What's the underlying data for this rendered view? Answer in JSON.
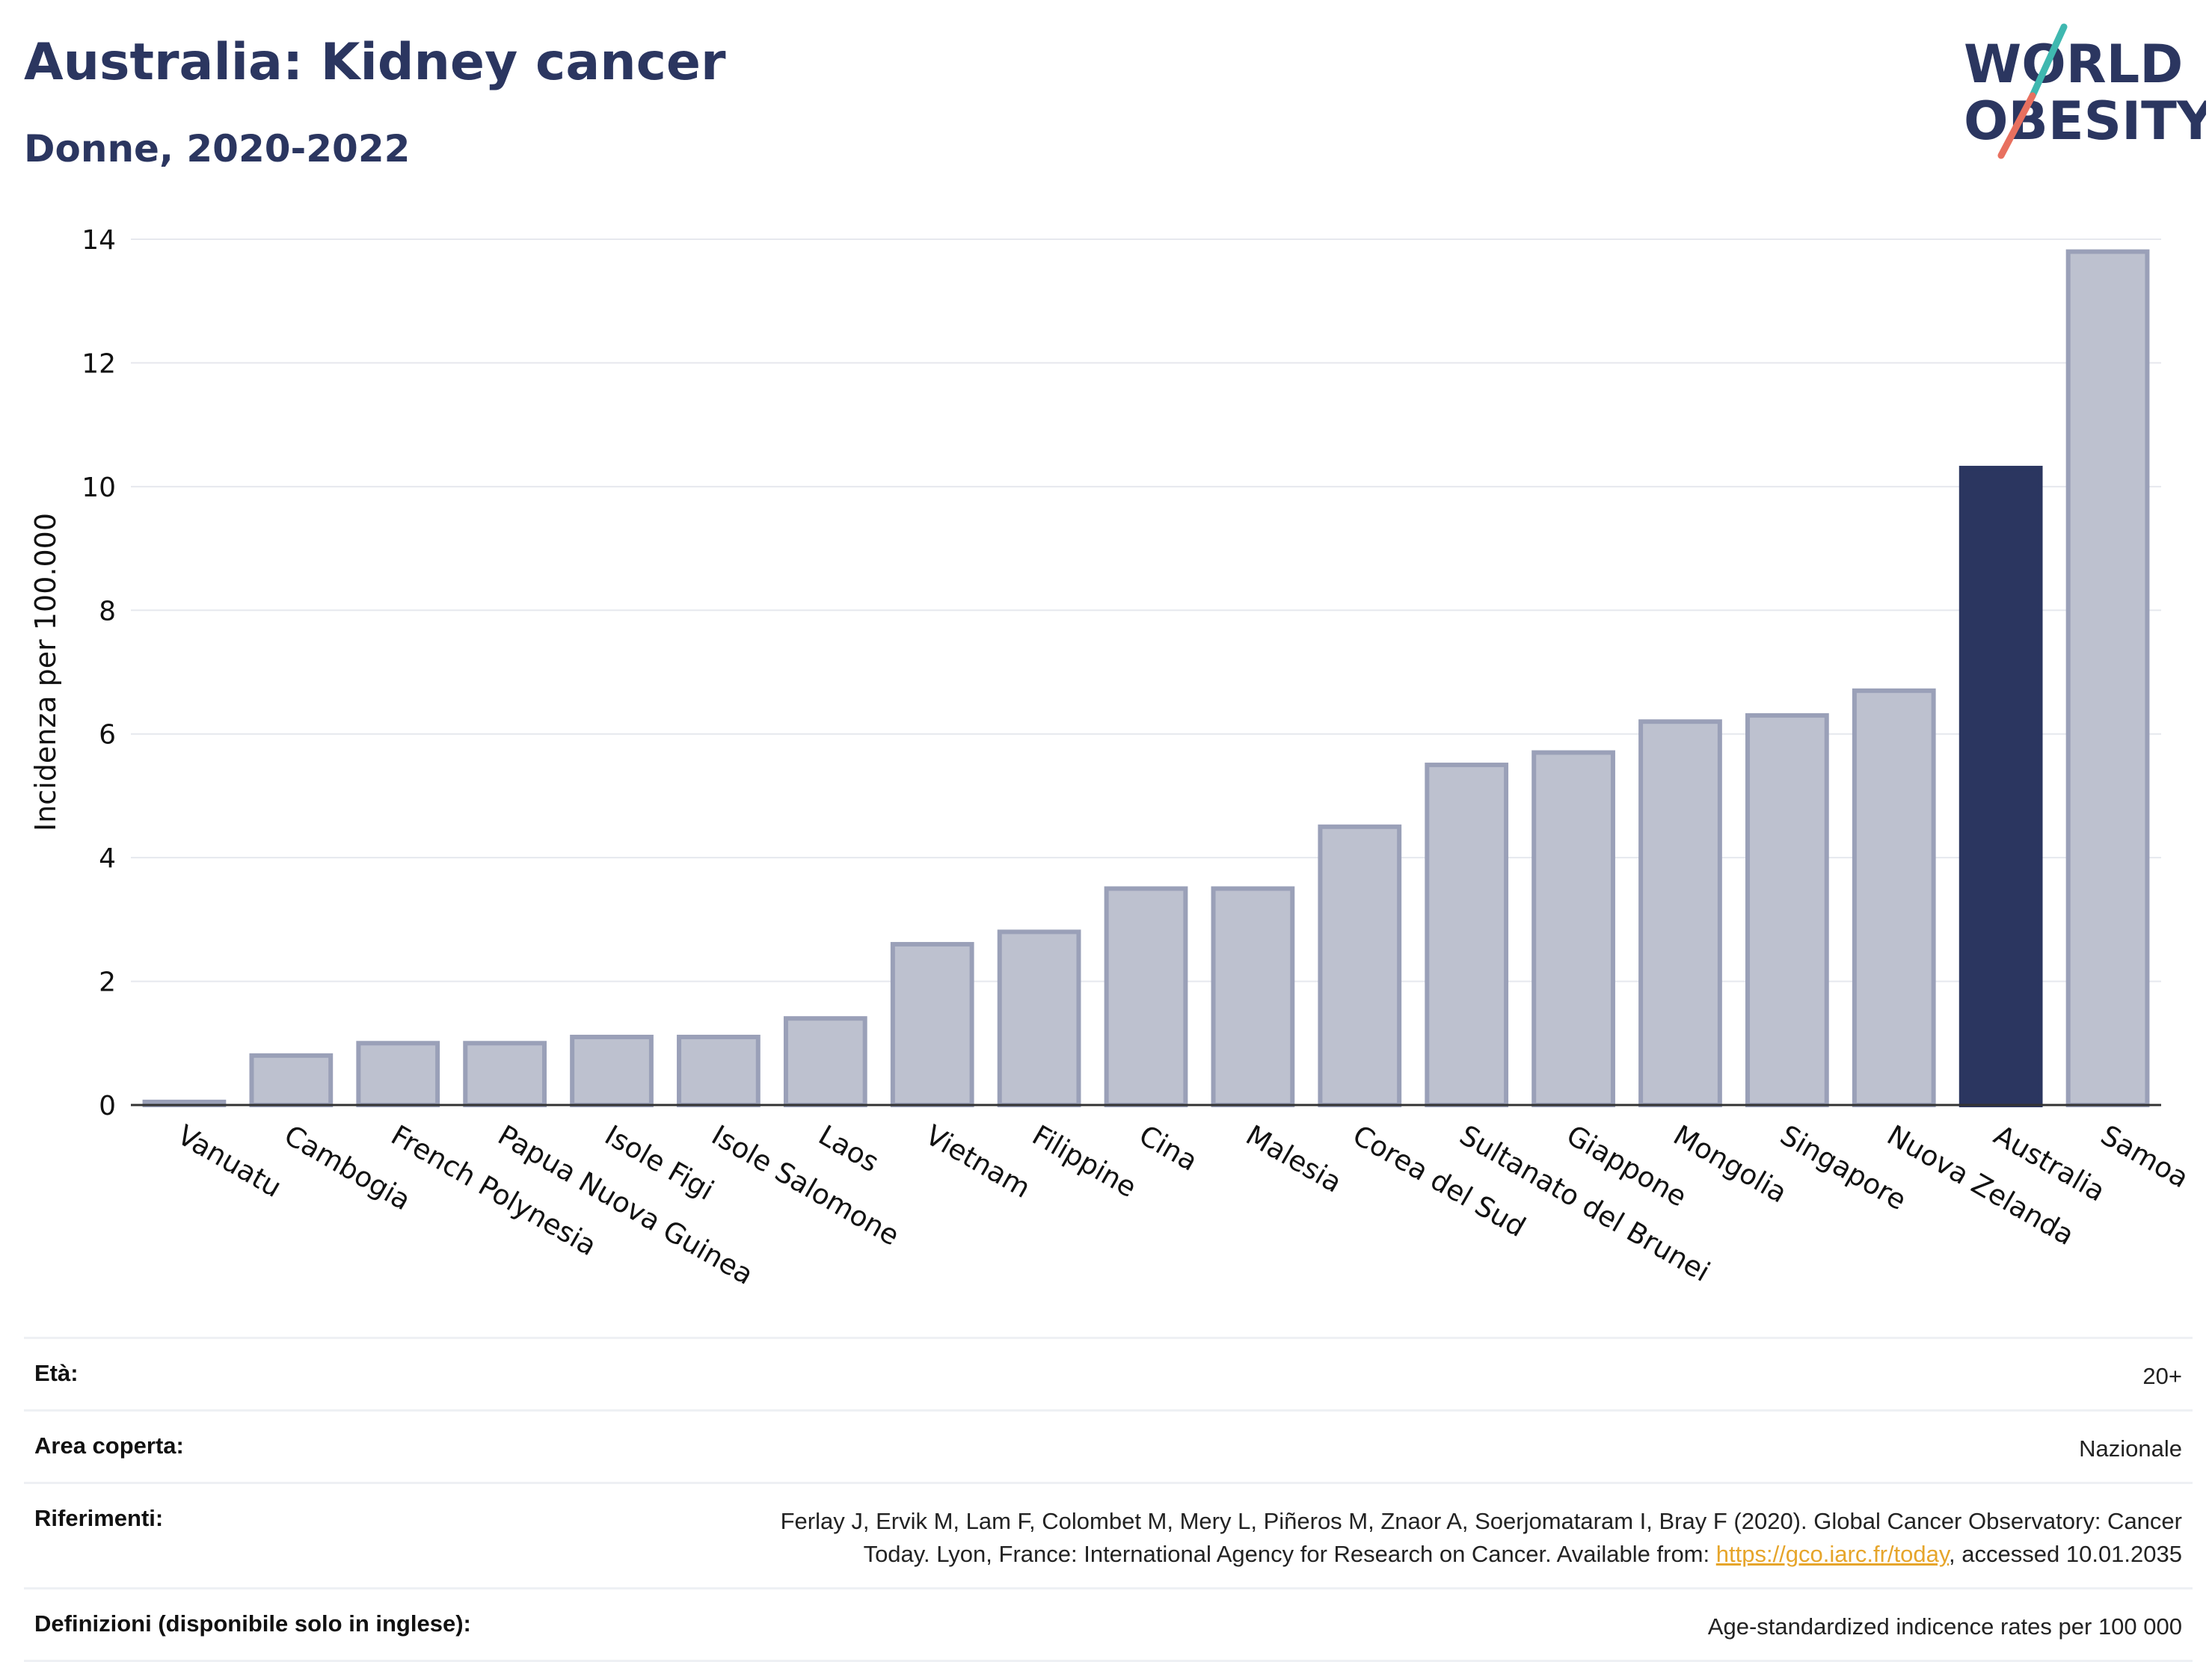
{
  "header": {
    "title": "Australia: Kidney cancer",
    "subtitle": "Donne, 2020-2022"
  },
  "logo": {
    "line1": "WORLD",
    "line2": "OBESITY"
  },
  "colors": {
    "highlight": "#2b3660",
    "bar": "#bdc1cf",
    "bar_stroke": "#9aa0b8",
    "title": "#2b3660",
    "link": "#e6a52b"
  },
  "chart_data": {
    "type": "bar",
    "ylabel": "Incidenza per 100.000",
    "ylim": [
      0,
      14
    ],
    "yticks": [
      0,
      2,
      4,
      6,
      8,
      10,
      12,
      14
    ],
    "grid": true,
    "highlight": "Australia",
    "categories": [
      "Vanuatu",
      "Cambogia",
      "French Polynesia",
      "Papua Nuova Guinea",
      "Isole Figi",
      "Isole Salomone",
      "Laos",
      "Vietnam",
      "Filippine",
      "Cina",
      "Malesia",
      "Corea del Sud",
      "Sultanato del Brunei",
      "Giappone",
      "Mongolia",
      "Singapore",
      "Nuova Zelanda",
      "Australia",
      "Samoa"
    ],
    "values": [
      0.05,
      0.8,
      1.0,
      1.0,
      1.1,
      1.1,
      1.4,
      2.6,
      2.8,
      3.5,
      3.5,
      4.5,
      5.5,
      5.7,
      6.2,
      6.3,
      6.7,
      10.3,
      13.8
    ]
  },
  "meta": {
    "age_label": "Età:",
    "age_value": "20+",
    "area_label": "Area coperta:",
    "area_value": "Nazionale",
    "refs_label": "Riferimenti:",
    "refs_line1": "Ferlay J, Ervik M, Lam F, Colombet M, Mery L, Piñeros M, Znaor A, Soerjomataram I, Bray F (2020). Global Cancer Observatory: Cancer",
    "refs_line2a": "Today. Lyon, France: International Agency for Research on Cancer. Available from: ",
    "refs_link": "https://gco.iarc.fr/today",
    "refs_line2b": ", accessed 10.01.2035",
    "defs_label": "Definizioni (disponibile solo in inglese):",
    "defs_value": "Age-standardized indicence rates per 100 000"
  }
}
